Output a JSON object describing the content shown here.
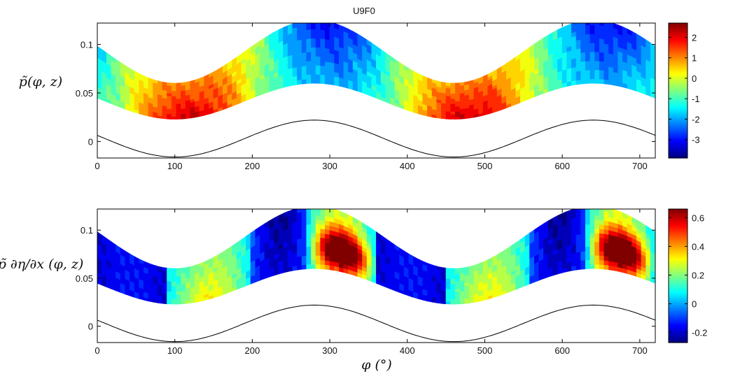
{
  "figure": {
    "title": "U9F0",
    "xlabel": "φ (°)"
  },
  "chart_data": [
    {
      "type": "heatmap",
      "title": "U9F0",
      "ylabel": "p̃(φ, z)",
      "xlabel": "",
      "xlim": [
        0,
        720
      ],
      "ylim": [
        -0.017,
        0.122
      ],
      "xticks": [
        "0",
        "100",
        "200",
        "300",
        "400",
        "500",
        "600",
        "700"
      ],
      "yticks": [
        "0",
        "0.05",
        "0.1"
      ],
      "colorbar": {
        "range": [
          -3.9,
          2.7
        ],
        "ticks": [
          "2",
          "1",
          "0",
          "-1",
          "-2",
          "-3"
        ],
        "colormap": "jet"
      },
      "field": {
        "description_fn": "amplitude * sin(phase) pattern",
        "peaks": [
          {
            "phi": 120,
            "value": 2.6
          },
          {
            "phi": 300,
            "value": -3.6
          },
          {
            "phi": 480,
            "value": 2.6
          },
          {
            "phi": 660,
            "value": -3.6
          }
        ]
      },
      "grid": false
    },
    {
      "type": "heatmap",
      "title": "",
      "ylabel": "p̃ ∂η/∂x (φ, z)",
      "xlabel": "φ (°)",
      "xlim": [
        0,
        720
      ],
      "ylim": [
        -0.017,
        0.122
      ],
      "xticks": [
        "0",
        "100",
        "200",
        "300",
        "400",
        "500",
        "600",
        "700"
      ],
      "yticks": [
        "0",
        "0.05",
        "0.1"
      ],
      "colorbar": {
        "range": [
          -0.27,
          0.66
        ],
        "ticks": [
          "0.6",
          "0.4",
          "0.2",
          "0",
          "-0.2"
        ],
        "colormap": "jet"
      },
      "field": {
        "peaks": [
          {
            "phi": 150,
            "value": 0.32
          },
          {
            "phi": 250,
            "value": -0.25
          },
          {
            "phi": 318,
            "value": 0.64
          },
          {
            "phi": 510,
            "value": 0.32
          },
          {
            "phi": 610,
            "value": -0.25
          },
          {
            "phi": 678,
            "value": 0.64
          }
        ]
      },
      "grid": false
    }
  ],
  "surface": {
    "description": "wavy bottom line",
    "period_deg": 360,
    "crest_phi": 280,
    "crest_z": 0.022,
    "trough_z": -0.016
  },
  "band": {
    "top_min": 0.06,
    "top_max": 0.125,
    "bottom_min": 0.023,
    "bottom_max": 0.06
  }
}
